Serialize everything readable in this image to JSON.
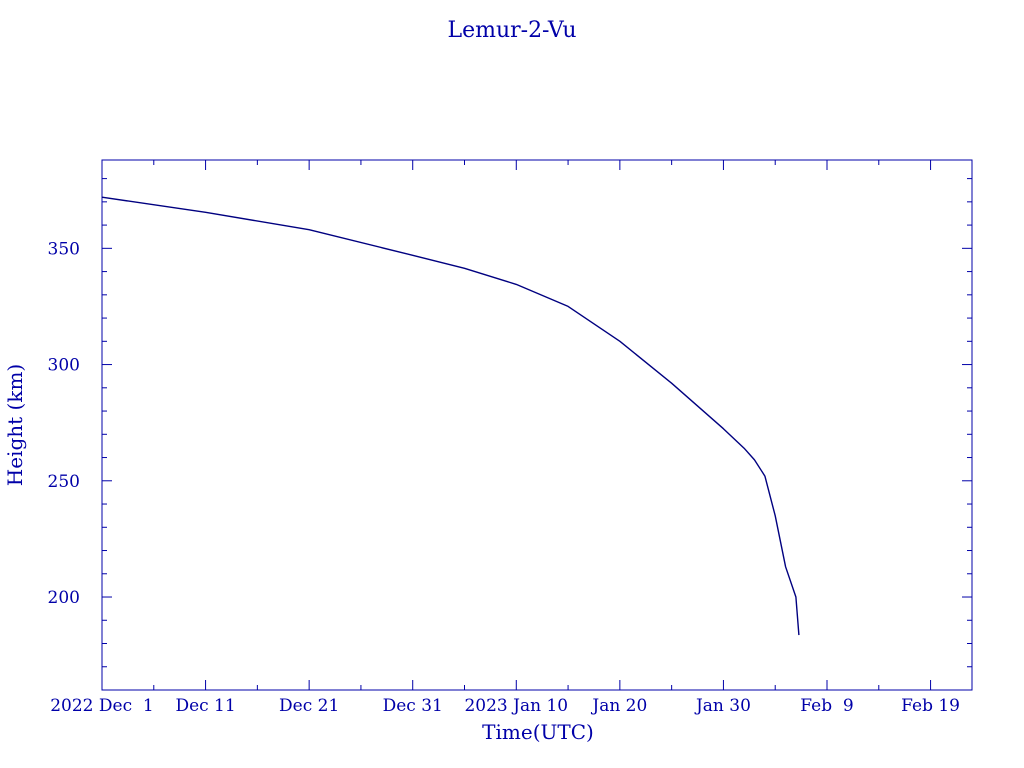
{
  "colors": {
    "axis": "#0000a8",
    "line": "#000080",
    "text": "#0000a8"
  },
  "chart_data": {
    "type": "line",
    "title": "Lemur-2-Vu",
    "xlabel": "Time(UTC)",
    "ylabel": "Height (km)",
    "xlim": [
      "2022-12-01",
      "2023-02-23"
    ],
    "ylim": [
      160,
      388
    ],
    "grid": false,
    "x_ticks": [
      {
        "date": "2022-12-01",
        "label": "2022 Dec  1"
      },
      {
        "date": "2022-12-11",
        "label": "Dec 11"
      },
      {
        "date": "2022-12-21",
        "label": "Dec 21"
      },
      {
        "date": "2022-12-31",
        "label": "Dec 31"
      },
      {
        "date": "2023-01-10",
        "label": "2023 Jan 10"
      },
      {
        "date": "2023-01-20",
        "label": "Jan 20"
      },
      {
        "date": "2023-01-30",
        "label": "Jan 30"
      },
      {
        "date": "2023-02-09",
        "label": "Feb  9"
      },
      {
        "date": "2023-02-19",
        "label": "Feb 19"
      }
    ],
    "y_ticks": [
      200,
      250,
      300,
      350
    ],
    "series": [
      {
        "x": [
          "2022-12-01",
          "2022-12-11",
          "2022-12-21",
          "2022-12-31",
          "2023-01-05",
          "2023-01-10",
          "2023-01-15",
          "2023-01-20",
          "2023-01-25",
          "2023-01-30",
          "2023-02-01",
          "2023-02-02",
          "2023-02-03",
          "2023-02-04",
          "2023-02-05",
          "2023-02-06",
          "2023-02-06T07:00"
        ],
        "y": [
          372,
          365.5,
          358,
          347,
          341.4,
          334.5,
          325,
          310,
          292,
          272.4,
          264,
          259,
          252,
          235,
          213,
          200,
          183.6
        ]
      }
    ]
  }
}
